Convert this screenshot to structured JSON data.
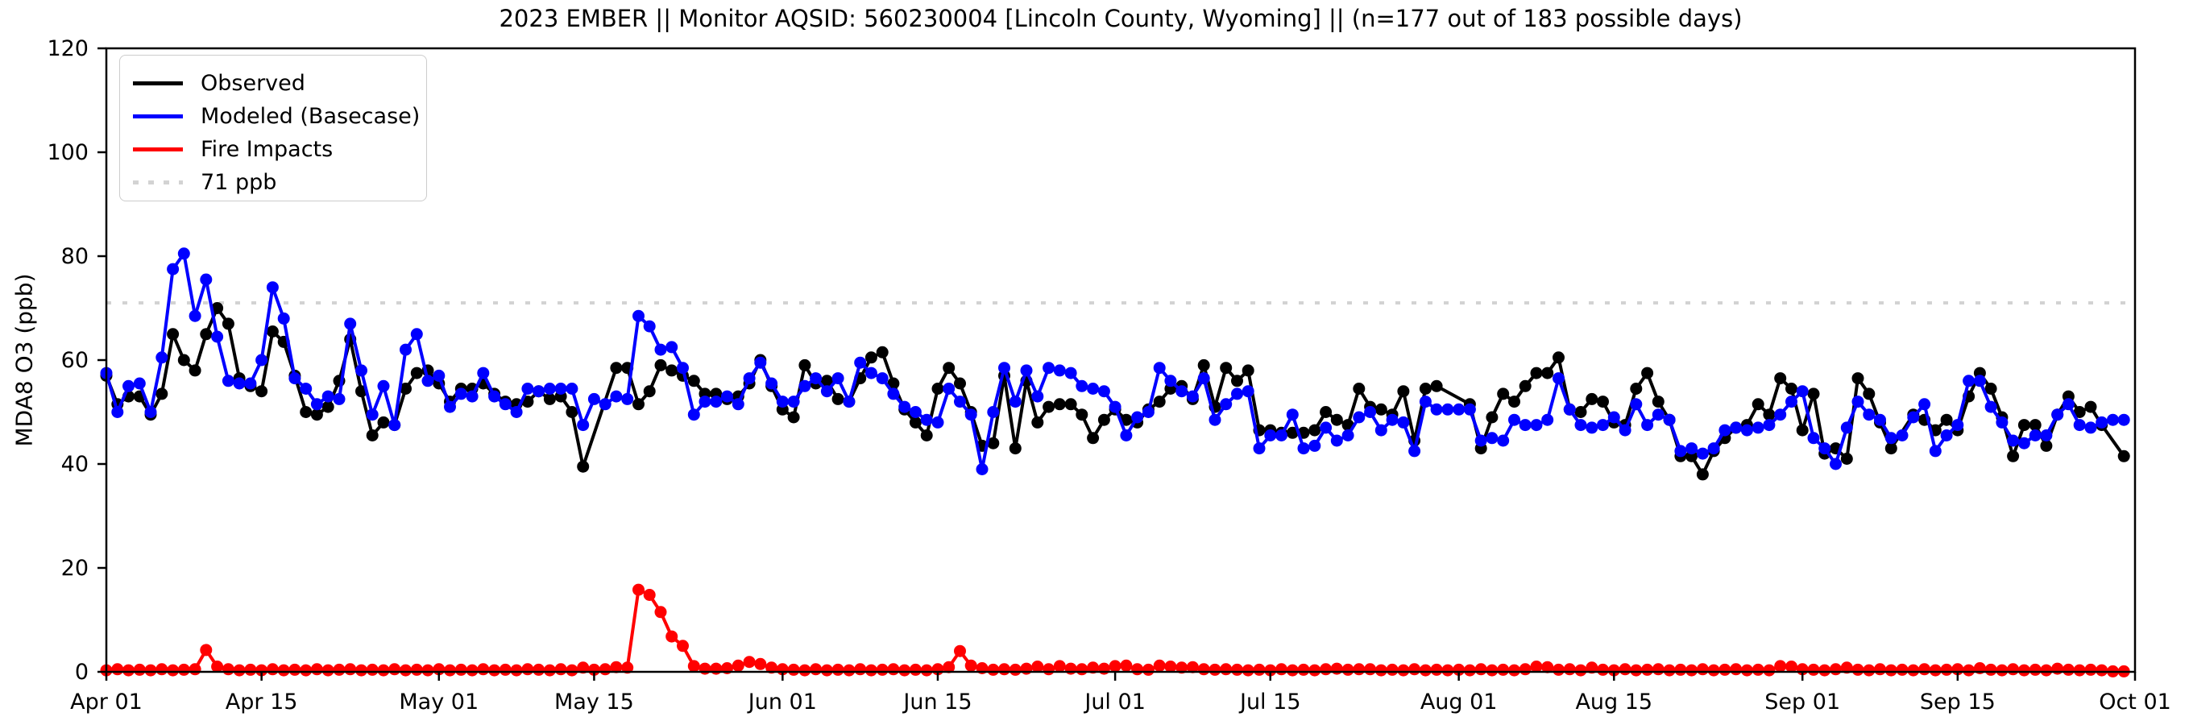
{
  "title": "2023 EMBER || Monitor AQSID: 560230004 [Lincoln County, Wyoming] || (n=177 out of 183 possible days)",
  "axes": {
    "ylabel": "MDA8 O3 (ppb)",
    "ylim": [
      0,
      120
    ],
    "yticks": [
      0,
      20,
      40,
      60,
      80,
      100,
      120
    ],
    "xtick_days": [
      0,
      14,
      30,
      44,
      61,
      75,
      91,
      105,
      122,
      136,
      153,
      167,
      183
    ],
    "xtick_labels": [
      "Apr 01",
      "Apr 15",
      "May 01",
      "May 15",
      "Jun 01",
      "Jun 15",
      "Jul 01",
      "Jul 15",
      "Aug 01",
      "Aug 15",
      "Sep 01",
      "Sep 15",
      "Oct 01"
    ],
    "grid": false
  },
  "threshold": {
    "value": 71,
    "label": "71 ppb",
    "color": "#d3d3d3"
  },
  "legend": [
    {
      "label": "Observed",
      "color": "#000000",
      "style": "solid"
    },
    {
      "label": "Modeled (Basecase)",
      "color": "#0000ff",
      "style": "solid"
    },
    {
      "label": "Fire Impacts",
      "color": "#ff0000",
      "style": "solid"
    },
    {
      "label": "71 ppb",
      "color": "#d3d3d3",
      "style": "dotted"
    }
  ],
  "chart_data": {
    "type": "line",
    "x_start_date": "Apr 01",
    "x_end_date": "Sep 30",
    "x_total_days": 183,
    "valid_days": 177,
    "legend_position": "upper left",
    "series": [
      {
        "name": "Observed",
        "color": "#000000",
        "values": [
          57,
          51.5,
          53,
          53,
          49.5,
          53.5,
          65,
          60,
          58,
          65,
          70,
          67,
          56.5,
          55,
          54,
          65.5,
          63.5,
          57,
          50,
          49.5,
          51,
          56,
          64,
          54,
          45.5,
          48,
          47.5,
          54.5,
          57.5,
          58,
          55.5,
          52,
          54.5,
          54.5,
          55.5,
          53.5,
          52,
          51.5,
          52,
          54,
          52.5,
          53,
          50,
          39.5,
          null,
          null,
          58.5,
          58.5,
          51.5,
          54,
          59,
          58,
          57,
          56,
          53.5,
          53.5,
          52.5,
          53,
          55.5,
          60,
          55,
          50.5,
          49,
          59,
          55.5,
          56,
          52.5,
          52,
          56.5,
          60.5,
          61.5,
          55.5,
          50.5,
          48,
          45.5,
          54.5,
          58.5,
          55.5,
          50,
          43.5,
          44,
          57,
          43,
          56,
          48,
          51,
          51.5,
          51.5,
          49.5,
          45,
          48.5,
          50.5,
          48.5,
          48,
          50.5,
          52,
          54.5,
          55,
          52.5,
          59,
          51,
          58.5,
          56,
          58,
          46.5,
          46.5,
          46,
          46,
          46,
          46.5,
          50,
          48.5,
          47.5,
          54.5,
          51,
          50.5,
          49.5,
          54,
          44.5,
          54.5,
          55,
          null,
          null,
          51.5,
          43,
          49,
          53.5,
          52,
          55,
          57.5,
          57.5,
          60.5,
          50.5,
          50,
          52.5,
          52,
          48,
          47.5,
          54.5,
          57.5,
          52,
          48.5,
          41.5,
          41.5,
          38,
          42.5,
          45,
          47,
          47.5,
          51.5,
          49.5,
          56.5,
          54.5,
          46.5,
          53.5,
          42,
          43,
          41,
          56.5,
          53.5,
          48,
          43,
          null,
          49.5,
          48.5,
          46.5,
          48.5,
          46.5,
          53,
          57.5,
          54.5,
          49,
          41.5,
          47.5,
          47.5,
          43.5,
          49.5,
          53,
          50,
          51,
          47.5,
          null,
          41.5
        ]
      },
      {
        "name": "Modeled (Basecase)",
        "color": "#0000ff",
        "values": [
          57.5,
          50,
          55,
          55.5,
          50,
          60.5,
          77.5,
          80.5,
          68.5,
          75.5,
          64.5,
          56,
          55.5,
          55.5,
          60,
          74,
          68,
          56.5,
          54.5,
          51.5,
          53,
          52.5,
          67,
          58,
          49.5,
          55,
          47.5,
          62,
          65,
          56,
          57,
          51,
          53.5,
          53,
          57.5,
          53,
          51.5,
          50,
          54.5,
          54,
          54.5,
          54.5,
          54.5,
          47.5,
          52.5,
          51.5,
          53,
          52.5,
          68.5,
          66.5,
          62,
          62.5,
          58.5,
          49.5,
          52,
          52,
          53,
          51.5,
          56.5,
          59.5,
          55.5,
          52,
          52,
          55,
          56.5,
          54,
          56.5,
          52,
          59.5,
          57.5,
          56.5,
          53.5,
          51,
          50,
          48.5,
          48,
          54.5,
          52,
          49.5,
          39,
          50,
          58.5,
          52,
          58,
          53,
          58.5,
          58,
          57.5,
          55,
          54.5,
          54,
          51,
          45.5,
          49,
          50,
          58.5,
          56,
          54,
          53,
          56.5,
          48.5,
          51.5,
          53.5,
          54,
          43,
          45.5,
          45.5,
          49.5,
          43,
          43.5,
          47,
          44.5,
          45.5,
          49,
          50,
          46.5,
          48.5,
          48,
          42.5,
          52,
          50.5,
          50.5,
          50.5,
          50.5,
          44.5,
          45,
          44.5,
          48.5,
          47.5,
          47.5,
          48.5,
          56.5,
          50.5,
          47.5,
          47,
          47.5,
          49,
          46.5,
          51.5,
          47.5,
          49.5,
          48.5,
          42.5,
          43,
          42,
          43,
          46.5,
          47,
          46.5,
          47,
          47.5,
          49.5,
          52,
          54,
          45,
          43,
          40,
          47,
          52,
          49.5,
          48.5,
          45,
          45.5,
          49,
          51.5,
          42.5,
          45.5,
          47.5,
          56,
          56,
          51,
          48,
          44.5,
          44,
          45.5,
          45.5,
          49.5,
          51.5,
          47.5,
          47,
          48,
          48.5,
          48.5
        ]
      },
      {
        "name": "Fire Impacts",
        "color": "#ff0000",
        "values": [
          0.3,
          0.5,
          0.3,
          0.4,
          0.3,
          0.5,
          0.3,
          0.4,
          0.5,
          4.2,
          1.0,
          0.5,
          0.3,
          0.4,
          0.3,
          0.5,
          0.3,
          0.4,
          0.3,
          0.5,
          0.3,
          0.4,
          0.5,
          0.3,
          0.4,
          0.3,
          0.5,
          0.3,
          0.4,
          0.3,
          0.5,
          0.3,
          0.4,
          0.3,
          0.5,
          0.3,
          0.4,
          0.3,
          0.5,
          0.4,
          0.3,
          0.5,
          0.3,
          0.8,
          0.4,
          0.5,
          0.9,
          0.8,
          15.8,
          14.8,
          11.5,
          6.8,
          5.0,
          1.1,
          0.6,
          0.6,
          0.7,
          1.2,
          1.9,
          1.5,
          0.8,
          0.5,
          0.4,
          0.3,
          0.5,
          0.3,
          0.4,
          0.3,
          0.5,
          0.3,
          0.4,
          0.5,
          0.3,
          0.4,
          0.3,
          0.5,
          0.9,
          4.0,
          1.2,
          0.7,
          0.4,
          0.5,
          0.4,
          0.6,
          1.0,
          0.5,
          1.1,
          0.6,
          0.5,
          0.8,
          0.6,
          1.1,
          1.2,
          0.5,
          0.4,
          1.2,
          1.0,
          0.8,
          0.9,
          0.5,
          0.4,
          0.5,
          0.4,
          0.3,
          0.4,
          0.3,
          0.5,
          0.3,
          0.4,
          0.3,
          0.5,
          0.6,
          0.4,
          0.5,
          0.5,
          0.3,
          0.4,
          0.3,
          0.5,
          0.3,
          0.4,
          0.3,
          0.4,
          0.3,
          0.5,
          0.3,
          0.4,
          0.3,
          0.5,
          1.0,
          0.9,
          0.4,
          0.5,
          0.3,
          0.8,
          0.4,
          0.3,
          0.5,
          0.3,
          0.4,
          0.5,
          0.3,
          0.4,
          0.3,
          0.5,
          0.3,
          0.4,
          0.5,
          0.3,
          0.4,
          0.3,
          1.1,
          1.0,
          0.5,
          0.4,
          0.3,
          0.5,
          0.8,
          0.4,
          0.3,
          0.5,
          0.3,
          0.4,
          0.3,
          0.5,
          0.3,
          0.4,
          0.5,
          0.3,
          0.7,
          0.4,
          0.3,
          0.5,
          0.3,
          0.4,
          0.3,
          0.6,
          0.4,
          0.3,
          0.4,
          0.3,
          0.1,
          0.1
        ]
      }
    ]
  }
}
